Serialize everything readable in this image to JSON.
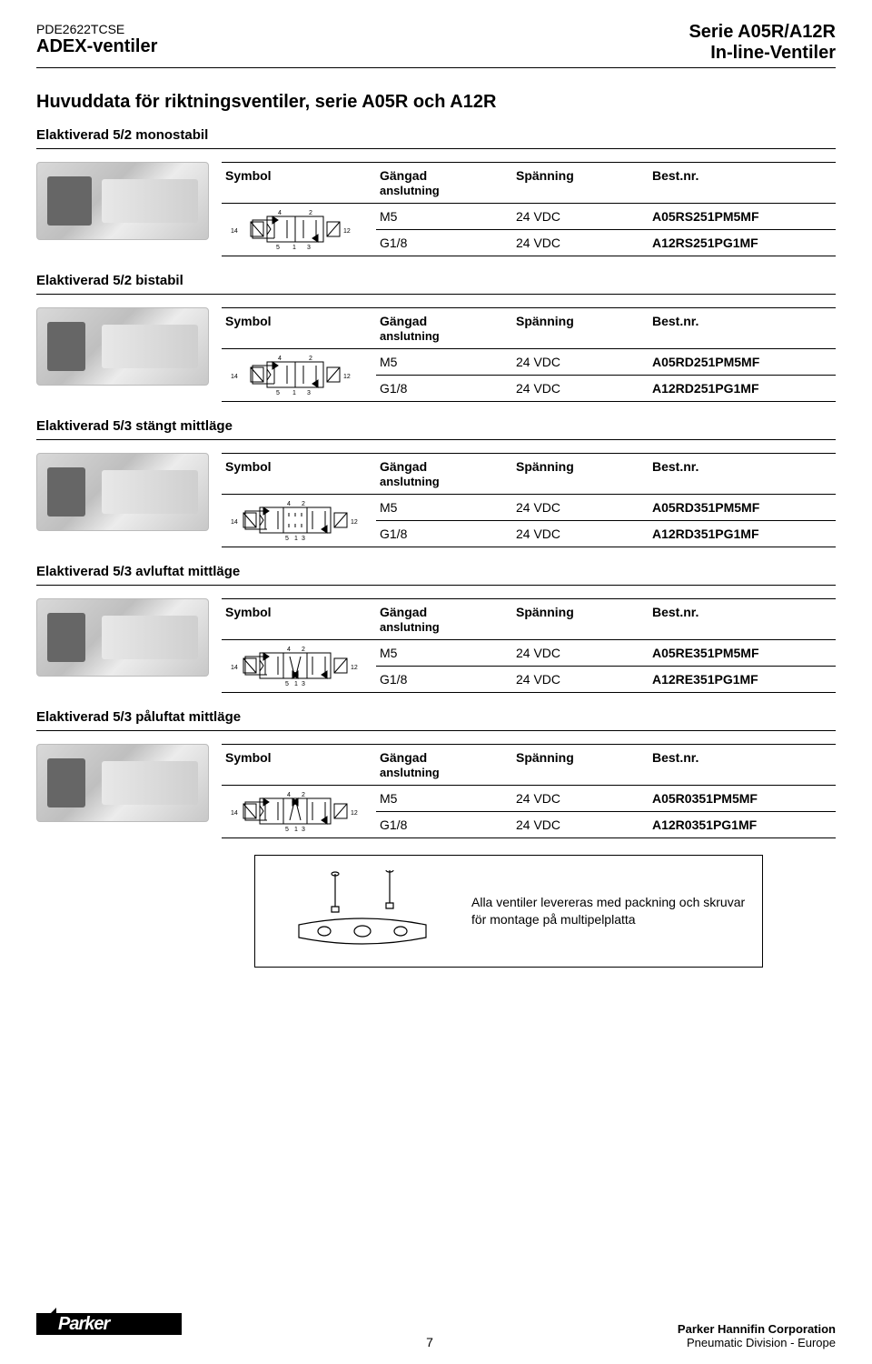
{
  "header": {
    "docnum": "PDE2622TCSE",
    "leftbold": "ADEX-ventiler",
    "rightline1": "Serie A05R/A12R",
    "rightline2": "In-line-Ventiler"
  },
  "title": "Huvuddata för riktningsventiler, serie A05R och A12R",
  "columns": {
    "symbol": "Symbol",
    "conn1": "Gängad",
    "conn2": "anslutning",
    "volt": "Spänning",
    "pn": "Best.nr."
  },
  "sections": [
    {
      "heading": "Elaktiverad 5/2 monostabil",
      "rows": [
        {
          "conn": "M5",
          "volt": "24 VDC",
          "pn": "A05RS251PM5MF"
        },
        {
          "conn": "G1/8",
          "volt": "24 VDC",
          "pn": "A12RS251PG1MF"
        }
      ]
    },
    {
      "heading": "Elaktiverad 5/2 bistabil",
      "rows": [
        {
          "conn": "M5",
          "volt": "24 VDC",
          "pn": "A05RD251PM5MF"
        },
        {
          "conn": "G1/8",
          "volt": "24 VDC",
          "pn": "A12RD251PG1MF"
        }
      ]
    },
    {
      "heading": "Elaktiverad 5/3 stängt mittläge",
      "rows": [
        {
          "conn": "M5",
          "volt": "24 VDC",
          "pn": "A05RD351PM5MF"
        },
        {
          "conn": "G1/8",
          "volt": "24 VDC",
          "pn": "A12RD351PG1MF"
        }
      ]
    },
    {
      "heading": "Elaktiverad 5/3 avluftat mittläge",
      "rows": [
        {
          "conn": "M5",
          "volt": "24 VDC",
          "pn": "A05RE351PM5MF"
        },
        {
          "conn": "G1/8",
          "volt": "24 VDC",
          "pn": "A12RE351PG1MF"
        }
      ]
    },
    {
      "heading": "Elaktiverad 5/3 påluftat mittläge",
      "rows": [
        {
          "conn": "M5",
          "volt": "24 VDC",
          "pn": "A05R0351PM5MF"
        },
        {
          "conn": "G1/8",
          "volt": "24 VDC",
          "pn": "A12R0351PG1MF"
        }
      ]
    }
  ],
  "symbol_labels": {
    "port14": "14",
    "port12": "12",
    "top4": "4",
    "top2": "2",
    "bot5": "5",
    "bot1": "1",
    "bot3": "3"
  },
  "note": "Alla ventiler levereras med packning och skruvar för montage på multipelplatta",
  "footer": {
    "pagenum": "7",
    "company": "Parker Hannifin Corporation",
    "division": "Pneumatic Division - Europe",
    "logotext": "Parker"
  }
}
